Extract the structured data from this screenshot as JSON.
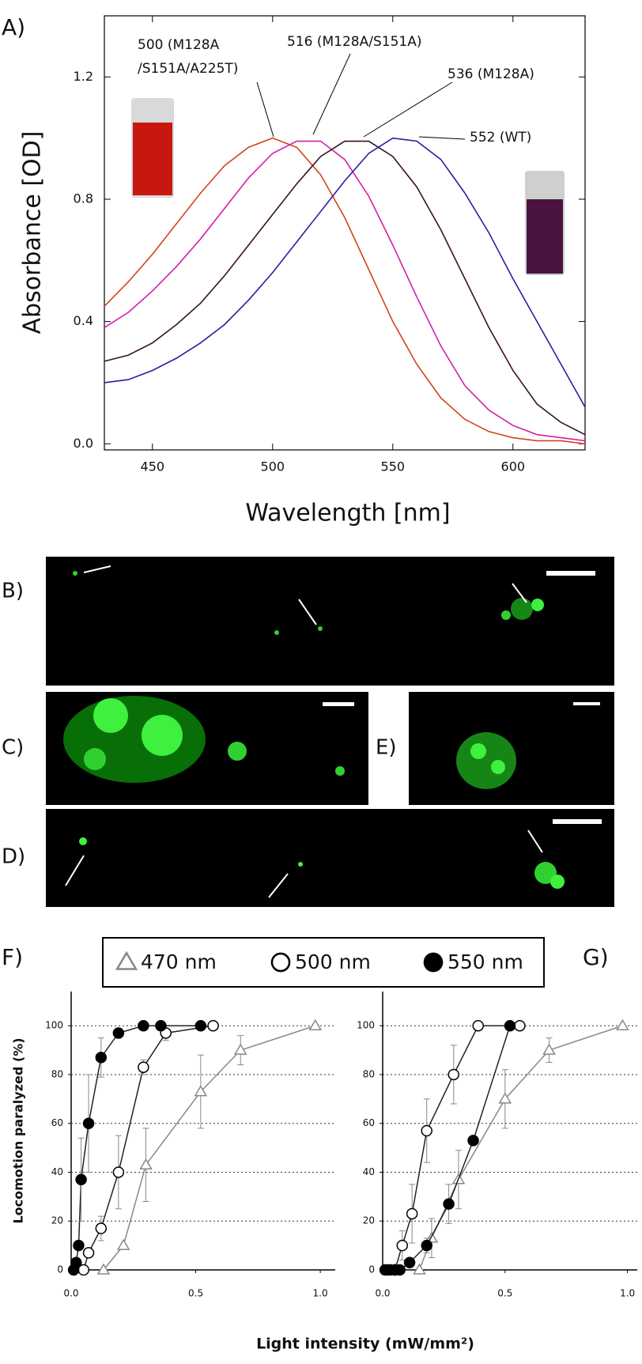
{
  "chart_data": [
    {
      "type": "line",
      "panel_label": "A)",
      "y_label": "Absorbance [OD]",
      "x_label": "Wavelength [nm]",
      "x": [
        430,
        440,
        450,
        460,
        470,
        480,
        490,
        500,
        510,
        520,
        530,
        540,
        550,
        560,
        570,
        580,
        590,
        600,
        610,
        620,
        630
      ],
      "xlim": [
        430,
        630
      ],
      "xticks": [
        450,
        500,
        550,
        600
      ],
      "ylim": [
        -0.02,
        1.4
      ],
      "yticks": [
        {
          "value": 0,
          "label": "0.0"
        },
        0.4,
        0.8,
        1.2
      ],
      "series": [
        {
          "color": "#d4431c",
          "values": [
            0.45,
            0.53,
            0.62,
            0.72,
            0.82,
            0.91,
            0.97,
            1.0,
            0.97,
            0.88,
            0.74,
            0.57,
            0.4,
            0.26,
            0.15,
            0.08,
            0.04,
            0.02,
            0.01,
            0.01,
            0.0
          ]
        },
        {
          "color": "#d41ea8",
          "values": [
            0.38,
            0.43,
            0.5,
            0.58,
            0.67,
            0.77,
            0.87,
            0.95,
            0.99,
            0.99,
            0.93,
            0.81,
            0.65,
            0.48,
            0.32,
            0.19,
            0.11,
            0.06,
            0.03,
            0.02,
            0.01
          ]
        },
        {
          "color": "#3a0f2a",
          "values": [
            0.27,
            0.29,
            0.33,
            0.39,
            0.46,
            0.55,
            0.65,
            0.75,
            0.85,
            0.94,
            0.99,
            0.99,
            0.94,
            0.84,
            0.7,
            0.54,
            0.38,
            0.24,
            0.13,
            0.07,
            0.03
          ]
        },
        {
          "color": "#2a1ea0",
          "values": [
            0.2,
            0.21,
            0.24,
            0.28,
            0.33,
            0.39,
            0.47,
            0.56,
            0.66,
            0.76,
            0.86,
            0.95,
            1.0,
            0.99,
            0.93,
            0.82,
            0.69,
            0.54,
            0.4,
            0.26,
            0.12
          ]
        }
      ],
      "annotations": [
        {
          "lines": [
            "500 (M128A",
            "/S151A/A225T)"
          ]
        },
        {
          "lines": [
            "516 (M128A/S151A)"
          ]
        },
        {
          "lines": [
            "536 (M128A)"
          ]
        },
        {
          "lines": [
            "552 (WT)"
          ]
        }
      ]
    },
    {
      "type": "line",
      "panel_label": "F)",
      "y_label": "Locomotion paralyzed (%)",
      "x_label": "Light intensity (mW/mm²)",
      "xlim": [
        0,
        1.06
      ],
      "xticks": [
        {
          "value": 0,
          "label": "0.0"
        },
        0.5,
        {
          "value": 1,
          "label": "1.0"
        }
      ],
      "ylim": [
        0,
        114
      ],
      "yticks": [
        0,
        20,
        40,
        60,
        80,
        100
      ],
      "grid": true,
      "series": [
        {
          "name": "470 nm",
          "marker": "triangle",
          "color": "#888888",
          "x": [
            0.13,
            0.21,
            0.3,
            0.52,
            0.68,
            0.98
          ],
          "values": [
            0,
            10,
            43,
            73,
            90,
            100
          ],
          "errors": [
            0,
            0,
            15,
            15,
            6,
            0
          ]
        },
        {
          "name": "500 nm",
          "marker": "open-circle",
          "color": "#222222",
          "x": [
            0.05,
            0.07,
            0.12,
            0.19,
            0.29,
            0.38,
            0.57
          ],
          "values": [
            0,
            7,
            17,
            40,
            83,
            97,
            100
          ],
          "errors": [
            0,
            0,
            5,
            15,
            3,
            3,
            0
          ]
        },
        {
          "name": "550 nm",
          "marker": "filled-circle",
          "color": "#222222",
          "x": [
            0.01,
            0.02,
            0.03,
            0.04,
            0.07,
            0.12,
            0.19,
            0.29,
            0.36,
            0.52
          ],
          "values": [
            0,
            3,
            10,
            37,
            60,
            87,
            97,
            100,
            100,
            100
          ],
          "errors": [
            0,
            0,
            0,
            17,
            20,
            8,
            2,
            0,
            0,
            0
          ]
        }
      ]
    },
    {
      "type": "line",
      "panel_label": "G)",
      "xlim": [
        0,
        1.04
      ],
      "xticks": [
        {
          "value": 0,
          "label": "0.0"
        },
        0.5,
        {
          "value": 1,
          "label": "1.0"
        }
      ],
      "ylim": [
        0,
        114
      ],
      "yticks": [
        0,
        20,
        40,
        60,
        80,
        100
      ],
      "grid": true,
      "series": [
        {
          "marker": "triangle",
          "color": "#888888",
          "x": [
            0.15,
            0.2,
            0.31,
            0.5,
            0.68,
            0.98
          ],
          "values": [
            0,
            13,
            37,
            70,
            90,
            100
          ],
          "errors": [
            0,
            8,
            12,
            12,
            5,
            0
          ]
        },
        {
          "marker": "open-circle",
          "color": "#222222",
          "x": [
            0.02,
            0.05,
            0.08,
            0.12,
            0.18,
            0.29,
            0.39,
            0.56
          ],
          "values": [
            0,
            0,
            10,
            23,
            57,
            80,
            100,
            100
          ],
          "errors": [
            0,
            0,
            6,
            12,
            13,
            12,
            0,
            0
          ]
        },
        {
          "marker": "filled-circle",
          "color": "#222222",
          "x": [
            0.01,
            0.03,
            0.05,
            0.07,
            0.11,
            0.18,
            0.27,
            0.37,
            0.52
          ],
          "values": [
            0,
            0,
            0,
            0,
            3,
            10,
            27,
            53,
            100
          ],
          "errors": [
            0,
            0,
            0,
            0,
            0,
            3,
            8,
            0,
            0
          ]
        }
      ]
    }
  ],
  "micrographs": [
    {
      "label": "B)"
    },
    {
      "label": "C)"
    },
    {
      "label": "E)"
    },
    {
      "label": "D)"
    }
  ]
}
